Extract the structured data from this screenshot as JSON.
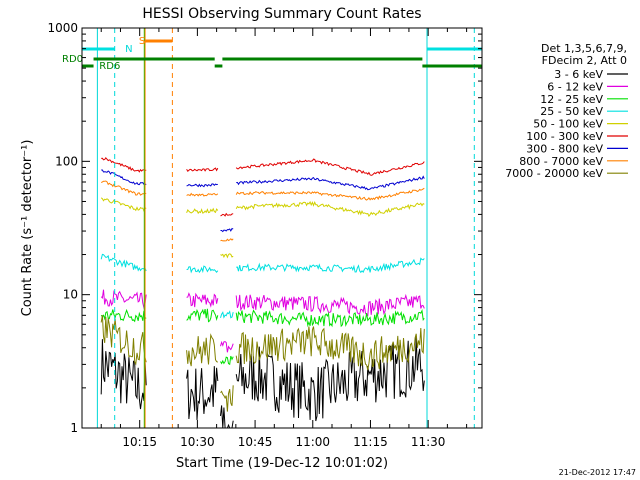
{
  "chart_data": {
    "type": "line",
    "title": "HESSI Observing Summary Count Rates",
    "xlabel": "Start Time (19-Dec-12 10:01:02)",
    "ylabel": "Count Rate (s⁻¹ detector⁻¹)",
    "yscale": "log",
    "ylim": [
      1,
      1000
    ],
    "xlim_minutes_after_1000": [
      0,
      104
    ],
    "y_tick_labels": [
      "1",
      "10",
      "100",
      "1000"
    ],
    "x_tick_labels": [
      "10:15",
      "10:30",
      "10:45",
      "11:00",
      "11:15",
      "11:30"
    ],
    "x_tick_minutes": [
      15,
      30,
      45,
      60,
      75,
      90
    ],
    "legend_header": [
      "Det 1,3,5,6,7,9,",
      "FDecim 2, Att 0"
    ],
    "legend_placement": "right",
    "footer_date": "21-Dec-2012 17:47",
    "flag_labels": {
      "S": "S",
      "N": "N",
      "RD0": "RD0",
      "RD6": "RD6"
    },
    "series": [
      {
        "name": "3 - 6 keV",
        "color": "#000000",
        "values": [
          [
            6,
            3
          ],
          [
            14,
            2
          ],
          [
            32,
            1.8
          ],
          [
            45,
            2.5
          ],
          [
            60,
            1.8
          ],
          [
            75,
            2.5
          ],
          [
            89,
            3
          ]
        ]
      },
      {
        "name": "6 - 12 keV",
        "color": "#e000e0",
        "values": [
          [
            6,
            9.5
          ],
          [
            14,
            9
          ],
          [
            32,
            9
          ],
          [
            45,
            8.8
          ],
          [
            60,
            8.5
          ],
          [
            75,
            8
          ],
          [
            89,
            9
          ]
        ]
      },
      {
        "name": "12 - 25 keV",
        "color": "#00e000",
        "values": [
          [
            6,
            7
          ],
          [
            14,
            7
          ],
          [
            32,
            7
          ],
          [
            45,
            6.8
          ],
          [
            60,
            6.5
          ],
          [
            75,
            6.5
          ],
          [
            89,
            7
          ]
        ]
      },
      {
        "name": "25 - 50 keV",
        "color": "#00e0e0",
        "values": [
          [
            6,
            19
          ],
          [
            14,
            16
          ],
          [
            32,
            15.5
          ],
          [
            45,
            16
          ],
          [
            60,
            16
          ],
          [
            75,
            15.5
          ],
          [
            89,
            18
          ]
        ]
      },
      {
        "name": "50 - 100 keV",
        "color": "#d0d000",
        "values": [
          [
            6,
            52
          ],
          [
            14,
            44
          ],
          [
            32,
            42
          ],
          [
            45,
            46
          ],
          [
            60,
            48
          ],
          [
            75,
            40
          ],
          [
            89,
            48
          ]
        ]
      },
      {
        "name": "100 - 300 keV",
        "color": "#e00000",
        "values": [
          [
            6,
            105
          ],
          [
            14,
            85
          ],
          [
            32,
            86
          ],
          [
            45,
            92
          ],
          [
            60,
            102
          ],
          [
            75,
            80
          ],
          [
            89,
            98
          ]
        ]
      },
      {
        "name": "300 - 800 keV",
        "color": "#0000d0",
        "values": [
          [
            6,
            85
          ],
          [
            14,
            68
          ],
          [
            32,
            66
          ],
          [
            45,
            70
          ],
          [
            60,
            74
          ],
          [
            75,
            62
          ],
          [
            89,
            76
          ]
        ]
      },
      {
        "name": "800 - 7000 keV",
        "color": "#ff8000",
        "values": [
          [
            6,
            70
          ],
          [
            14,
            57
          ],
          [
            32,
            56
          ],
          [
            45,
            58
          ],
          [
            60,
            58
          ],
          [
            75,
            52
          ],
          [
            89,
            62
          ]
        ]
      },
      {
        "name": "7000 - 20000 keV",
        "color": "#808000",
        "values": [
          [
            6,
            5.5
          ],
          [
            14,
            4
          ],
          [
            32,
            3.8
          ],
          [
            45,
            4
          ],
          [
            60,
            4.5
          ],
          [
            75,
            3.5
          ],
          [
            89,
            4.5
          ]
        ]
      }
    ]
  }
}
